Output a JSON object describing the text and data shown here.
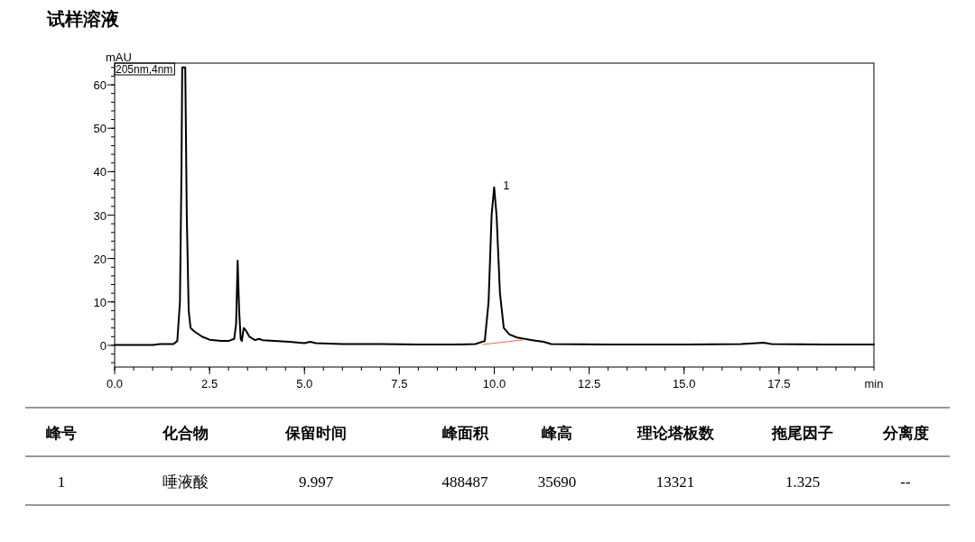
{
  "chart_data": {
    "type": "line",
    "title": "试样溶液",
    "xlabel": "min",
    "ylabel": "mAU",
    "xlim": [
      0,
      20
    ],
    "xticks": [
      {
        "value": 0,
        "label": "0.0"
      },
      {
        "value": 2.5,
        "label": "2.5"
      },
      {
        "value": 5,
        "label": "5.0"
      },
      {
        "value": 7.5,
        "label": "7.5"
      },
      {
        "value": 10,
        "label": "10.0"
      },
      {
        "value": 12.5,
        "label": "12.5"
      },
      {
        "value": 15,
        "label": "15.0"
      },
      {
        "value": 17.5,
        "label": "17.5"
      }
    ],
    "ylim": [
      -5,
      65
    ],
    "yticks": [
      0,
      10,
      20,
      30,
      40,
      50,
      60
    ],
    "series": [
      {
        "color": "#000000",
        "x": [
          0,
          1.0,
          1.2,
          1.4,
          1.55,
          1.65,
          1.72,
          1.76,
          1.78,
          1.86,
          1.9,
          1.95,
          2.0,
          2.1,
          2.3,
          2.5,
          2.8,
          3.0,
          3.15,
          3.2,
          3.24,
          3.28,
          3.32,
          3.35,
          3.4,
          3.45,
          3.55,
          3.7,
          3.8,
          3.9,
          4.2,
          4.6,
          5.0,
          5.15,
          5.3,
          6,
          7,
          8,
          9.0,
          9.5,
          9.75,
          9.85,
          9.93,
          9.997,
          10.06,
          10.15,
          10.25,
          10.4,
          10.6,
          11,
          11.3,
          11.5,
          13,
          15,
          16.5,
          17.1,
          17.3,
          18.7,
          20
        ],
        "values": [
          0.1,
          0.1,
          0.3,
          0.3,
          0.3,
          1,
          10,
          40,
          64,
          64,
          30,
          8,
          4,
          3.2,
          2,
          1.3,
          1,
          1,
          1.5,
          5,
          19.5,
          8,
          1.5,
          1,
          4,
          3.5,
          2,
          1.2,
          1.5,
          1.2,
          1,
          0.8,
          0.5,
          0.8,
          0.5,
          0.3,
          0.3,
          0.2,
          0.2,
          0.3,
          1,
          10,
          30,
          36.4,
          30,
          12,
          4,
          2.5,
          1.8,
          1.2,
          0.8,
          0.3,
          0.2,
          0.2,
          0.3,
          0.6,
          0.3,
          0.2,
          0.2
        ]
      },
      {
        "color": "#e07050",
        "x": [
          9.7,
          10.8
        ],
        "values": [
          0.2,
          1.3
        ]
      }
    ],
    "annotations": [
      "205nm,4nm",
      {
        "text": "1",
        "x": 9.997,
        "y": 36.4
      },
      "峰号",
      "化合物",
      "保留时间",
      "峰面积",
      "峰高",
      "理论塔板数",
      "拖尾因子",
      "分离度",
      "1",
      "唾液酸",
      "9.997",
      "488487",
      "35690",
      "13321",
      "1.325",
      "--"
    ]
  }
}
